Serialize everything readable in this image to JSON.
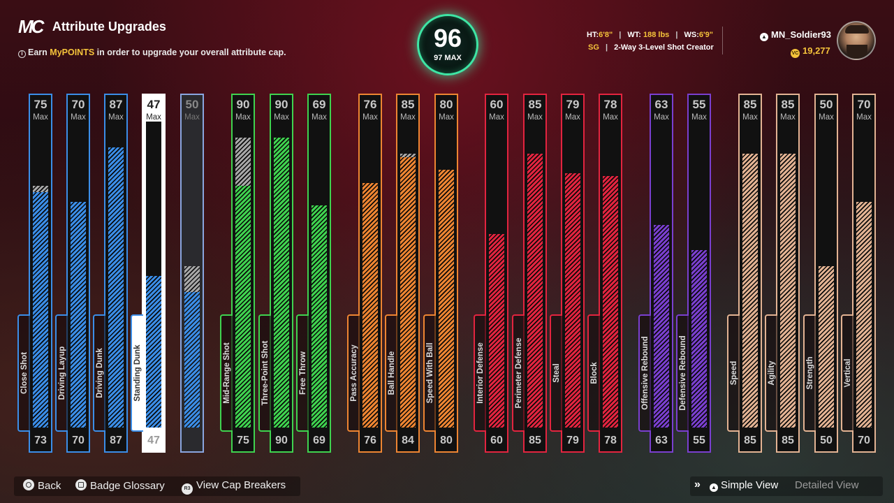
{
  "header": {
    "logo": "MC",
    "title": "Attribute Upgrades",
    "subtitle_prefix": "Earn",
    "subtitle_highlight": "MyPOINTS",
    "subtitle_suffix": "in order to upgrade your overall attribute cap.",
    "info_icon": "i"
  },
  "overall": {
    "value": "96",
    "max_label": "97 MAX"
  },
  "player": {
    "ht_label": "HT:",
    "ht": "6'8\"",
    "wt_label": "WT:",
    "wt": "188 lbs",
    "ws_label": "WS:",
    "ws": "6'9\"",
    "position": "SG",
    "archetype": "2-Way 3-Level Shot Creator"
  },
  "user": {
    "name": "MN_Soldier93",
    "points": "19,277"
  },
  "max_word": "Max",
  "attributes": [
    {
      "name": "Close Shot",
      "cap": "75",
      "current": "73",
      "cap_pct": 0.75,
      "cur_pct": 0.73,
      "color": "#3b8ee8"
    },
    {
      "name": "Driving Layup",
      "cap": "70",
      "current": "70",
      "cap_pct": 0.7,
      "cur_pct": 0.7,
      "color": "#3b8ee8"
    },
    {
      "name": "Driving Dunk",
      "cap": "87",
      "current": "87",
      "cap_pct": 0.87,
      "cur_pct": 0.87,
      "color": "#3b8ee8"
    },
    {
      "name": "Standing Dunk",
      "cap": "47",
      "current": "47",
      "cap_pct": 0.47,
      "cur_pct": 0.47,
      "color": "#3b8ee8",
      "selected": true
    },
    {
      "name": "",
      "cap": "50",
      "current": "",
      "cap_pct": 0.5,
      "cur_pct": 0.42,
      "color": "#3b8ee8",
      "preview": true
    },
    {
      "name": "Mid-Range Shot",
      "cap": "90",
      "current": "75",
      "cap_pct": 0.9,
      "cur_pct": 0.75,
      "color": "#3fd34f"
    },
    {
      "name": "Three-Point Shot",
      "cap": "90",
      "current": "90",
      "cap_pct": 0.9,
      "cur_pct": 0.9,
      "color": "#3fd34f"
    },
    {
      "name": "Free Throw",
      "cap": "69",
      "current": "69",
      "cap_pct": 0.69,
      "cur_pct": 0.69,
      "color": "#3fd34f"
    },
    {
      "name": "Pass Accuracy",
      "cap": "76",
      "current": "76",
      "cap_pct": 0.76,
      "cur_pct": 0.76,
      "color": "#ee8532"
    },
    {
      "name": "Ball Handle",
      "cap": "85",
      "current": "84",
      "cap_pct": 0.85,
      "cur_pct": 0.84,
      "color": "#ee8532"
    },
    {
      "name": "Speed With Ball",
      "cap": "80",
      "current": "80",
      "cap_pct": 0.8,
      "cur_pct": 0.8,
      "color": "#ee8532"
    },
    {
      "name": "Interior Defense",
      "cap": "60",
      "current": "60",
      "cap_pct": 0.6,
      "cur_pct": 0.6,
      "color": "#e3243f"
    },
    {
      "name": "Perimeter Defense",
      "cap": "85",
      "current": "85",
      "cap_pct": 0.85,
      "cur_pct": 0.85,
      "color": "#e3243f"
    },
    {
      "name": "Steal",
      "cap": "79",
      "current": "79",
      "cap_pct": 0.79,
      "cur_pct": 0.79,
      "color": "#e3243f"
    },
    {
      "name": "Block",
      "cap": "78",
      "current": "78",
      "cap_pct": 0.78,
      "cur_pct": 0.78,
      "color": "#e3243f"
    },
    {
      "name": "Offensive Rebound",
      "cap": "63",
      "current": "63",
      "cap_pct": 0.63,
      "cur_pct": 0.63,
      "color": "#7a3fd0"
    },
    {
      "name": "Defensive Rebound",
      "cap": "55",
      "current": "55",
      "cap_pct": 0.55,
      "cur_pct": 0.55,
      "color": "#7a3fd0"
    },
    {
      "name": "Speed",
      "cap": "85",
      "current": "85",
      "cap_pct": 0.85,
      "cur_pct": 0.85,
      "color": "#e3b393"
    },
    {
      "name": "Agility",
      "cap": "85",
      "current": "85",
      "cap_pct": 0.85,
      "cur_pct": 0.85,
      "color": "#e3b393"
    },
    {
      "name": "Strength",
      "cap": "50",
      "current": "50",
      "cap_pct": 0.5,
      "cur_pct": 0.5,
      "color": "#e3b393"
    },
    {
      "name": "Vertical",
      "cap": "70",
      "current": "70",
      "cap_pct": 0.7,
      "cur_pct": 0.7,
      "color": "#e3b393"
    }
  ],
  "footer": {
    "back": "Back",
    "badge_glossary": "Badge Glossary",
    "cap_breakers": "View Cap Breakers",
    "r3": "R3",
    "simple_view": "Simple View",
    "detailed_view": "Detailed View"
  }
}
